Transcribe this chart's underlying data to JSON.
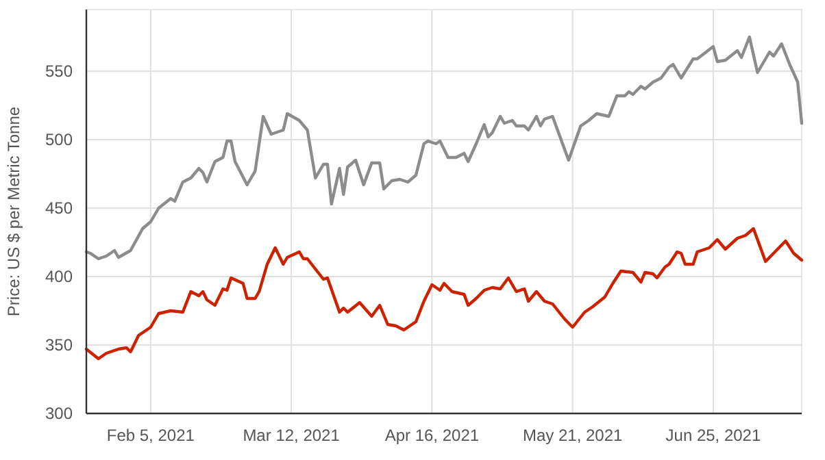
{
  "chart_data": {
    "type": "line",
    "ylabel": "Price: US $ per Metric Tonne",
    "xlim": [
      "2021-01-20",
      "2021-07-17"
    ],
    "xticks": [
      {
        "value": "2021-02-05",
        "label": "Feb 5, 2021"
      },
      {
        "value": "2021-03-12",
        "label": "Mar 12, 2021"
      },
      {
        "value": "2021-04-16",
        "label": "Apr 16, 2021"
      },
      {
        "value": "2021-05-21",
        "label": "May 21, 2021"
      },
      {
        "value": "2021-06-25",
        "label": "Jun 25, 2021"
      }
    ],
    "ylim": [
      300,
      595
    ],
    "yticks": [
      300,
      350,
      400,
      450,
      500,
      550
    ],
    "grid": true,
    "marker": "none",
    "line_style": "solid",
    "series": [
      {
        "color": "#8c8c8c",
        "x": [
          "2021-01-20",
          "2021-01-21",
          "2021-01-23",
          "2021-01-25",
          "2021-01-27",
          "2021-01-28",
          "2021-01-31",
          "2021-02-03",
          "2021-02-05",
          "2021-02-07",
          "2021-02-10",
          "2021-02-11",
          "2021-02-13",
          "2021-02-15",
          "2021-02-17",
          "2021-02-18",
          "2021-02-19",
          "2021-02-21",
          "2021-02-23",
          "2021-02-24",
          "2021-02-25",
          "2021-02-26",
          "2021-03-01",
          "2021-03-03",
          "2021-03-05",
          "2021-03-07",
          "2021-03-10",
          "2021-03-11",
          "2021-03-14",
          "2021-03-16",
          "2021-03-18",
          "2021-03-20",
          "2021-03-21",
          "2021-03-22",
          "2021-03-24",
          "2021-03-25",
          "2021-03-26",
          "2021-03-28",
          "2021-03-30",
          "2021-04-01",
          "2021-04-03",
          "2021-04-04",
          "2021-04-06",
          "2021-04-08",
          "2021-04-10",
          "2021-04-12",
          "2021-04-14",
          "2021-04-15",
          "2021-04-17",
          "2021-04-18",
          "2021-04-20",
          "2021-04-22",
          "2021-04-24",
          "2021-04-25",
          "2021-04-27",
          "2021-04-29",
          "2021-04-30",
          "2021-05-01",
          "2021-05-03",
          "2021-05-04",
          "2021-05-06",
          "2021-05-07",
          "2021-05-09",
          "2021-05-10",
          "2021-05-12",
          "2021-05-13",
          "2021-05-14",
          "2021-05-16",
          "2021-05-17",
          "2021-05-20",
          "2021-05-23",
          "2021-05-25",
          "2021-05-27",
          "2021-05-30",
          "2021-06-01",
          "2021-06-03",
          "2021-06-04",
          "2021-06-05",
          "2021-06-07",
          "2021-06-08",
          "2021-06-10",
          "2021-06-12",
          "2021-06-14",
          "2021-06-15",
          "2021-06-17",
          "2021-06-20",
          "2021-06-21",
          "2021-06-25",
          "2021-06-26",
          "2021-06-28",
          "2021-07-01",
          "2021-07-02",
          "2021-07-04",
          "2021-07-06",
          "2021-07-09",
          "2021-07-10",
          "2021-07-12",
          "2021-07-14",
          "2021-07-16",
          "2021-07-17"
        ],
        "values": [
          418,
          417,
          413,
          415,
          419,
          414,
          419,
          435,
          440,
          450,
          457,
          455,
          469,
          472,
          479,
          476,
          469,
          484,
          487,
          499,
          499,
          484,
          467,
          477,
          517,
          504,
          507,
          519,
          514,
          507,
          472,
          482,
          482,
          453,
          479,
          460,
          480,
          485,
          467,
          483,
          483,
          464,
          470,
          471,
          469,
          474,
          497,
          499,
          497,
          499,
          487,
          487,
          490,
          484,
          497,
          511,
          502,
          505,
          517,
          512,
          514,
          510,
          510,
          507,
          517,
          510,
          515,
          517,
          509,
          485,
          510,
          514,
          519,
          517,
          532,
          532,
          535,
          533,
          539,
          537,
          542,
          545,
          553,
          555,
          545,
          559,
          559,
          568,
          557,
          558,
          565,
          560,
          575,
          549,
          564,
          561,
          570,
          555,
          542,
          512
        ]
      },
      {
        "color": "#cc2200",
        "x": [
          "2021-01-20",
          "2021-01-23",
          "2021-01-25",
          "2021-01-28",
          "2021-01-30",
          "2021-01-31",
          "2021-02-02",
          "2021-02-05",
          "2021-02-07",
          "2021-02-10",
          "2021-02-13",
          "2021-02-15",
          "2021-02-17",
          "2021-02-18",
          "2021-02-19",
          "2021-02-21",
          "2021-02-23",
          "2021-02-24",
          "2021-02-25",
          "2021-02-28",
          "2021-03-01",
          "2021-03-03",
          "2021-03-04",
          "2021-03-06",
          "2021-03-08",
          "2021-03-10",
          "2021-03-11",
          "2021-03-14",
          "2021-03-15",
          "2021-03-16",
          "2021-03-20",
          "2021-03-21",
          "2021-03-24",
          "2021-03-25",
          "2021-03-26",
          "2021-03-29",
          "2021-04-01",
          "2021-04-03",
          "2021-04-05",
          "2021-04-07",
          "2021-04-09",
          "2021-04-12",
          "2021-04-14",
          "2021-04-16",
          "2021-04-18",
          "2021-04-19",
          "2021-04-21",
          "2021-04-24",
          "2021-04-25",
          "2021-04-27",
          "2021-04-29",
          "2021-05-01",
          "2021-05-03",
          "2021-05-05",
          "2021-05-07",
          "2021-05-09",
          "2021-05-10",
          "2021-05-12",
          "2021-05-14",
          "2021-05-16",
          "2021-05-19",
          "2021-05-21",
          "2021-05-24",
          "2021-05-26",
          "2021-05-29",
          "2021-05-31",
          "2021-06-02",
          "2021-06-05",
          "2021-06-07",
          "2021-06-08",
          "2021-06-10",
          "2021-06-11",
          "2021-06-13",
          "2021-06-14",
          "2021-06-16",
          "2021-06-17",
          "2021-06-18",
          "2021-06-20",
          "2021-06-21",
          "2021-06-24",
          "2021-06-26",
          "2021-06-28",
          "2021-07-01",
          "2021-07-03",
          "2021-07-05",
          "2021-07-08",
          "2021-07-10",
          "2021-07-11",
          "2021-07-13",
          "2021-07-15",
          "2021-07-17"
        ],
        "values": [
          347,
          340,
          344,
          347,
          348,
          345,
          357,
          363,
          373,
          375,
          374,
          389,
          386,
          389,
          383,
          379,
          391,
          390,
          399,
          395,
          384,
          384,
          389,
          409,
          421,
          409,
          414,
          418,
          413,
          413,
          398,
          399,
          374,
          377,
          374,
          381,
          371,
          379,
          365,
          364,
          361,
          367,
          382,
          394,
          390,
          395,
          389,
          387,
          379,
          384,
          390,
          392,
          391,
          399,
          389,
          391,
          382,
          389,
          382,
          380,
          369,
          363,
          374,
          378,
          385,
          395,
          404,
          403,
          396,
          403,
          402,
          399,
          407,
          409,
          418,
          417,
          409,
          409,
          418,
          421,
          427,
          420,
          428,
          430,
          435,
          411,
          417,
          420,
          426,
          417,
          412
        ]
      }
    ]
  }
}
